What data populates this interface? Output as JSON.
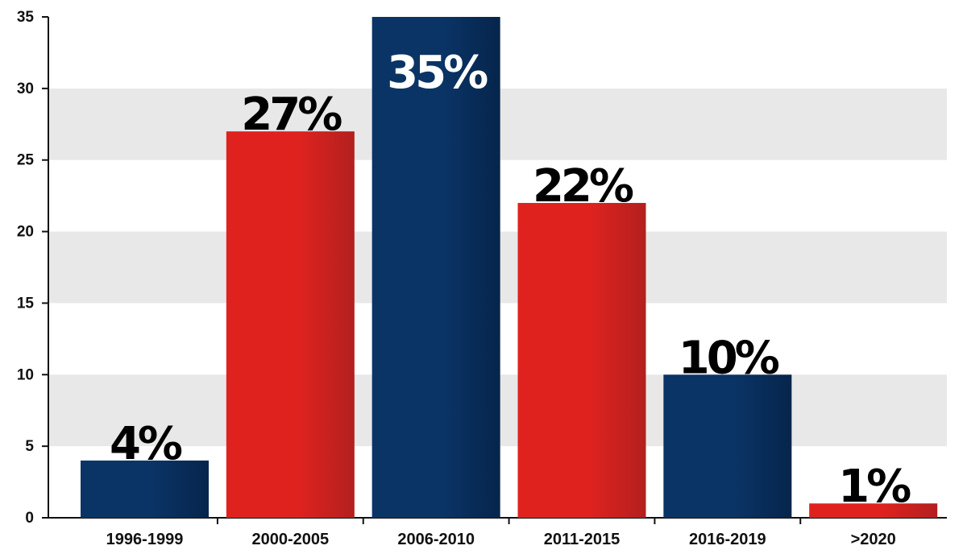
{
  "chart_data": {
    "type": "bar",
    "title": "",
    "xlabel": "",
    "ylabel": "",
    "ylim": [
      0,
      35
    ],
    "yticks": [
      "0",
      "5",
      "10",
      "15",
      "20",
      "25",
      "30",
      "35"
    ],
    "grid": "alternating horizontal bands",
    "categories": [
      "1996-1999",
      "2000-2005",
      "2006-2010",
      "2011-2015",
      "2016-2019",
      ">2020"
    ],
    "values": [
      4,
      27,
      35,
      22,
      10,
      1
    ],
    "labels": [
      "4%",
      "27%",
      "35%",
      "22%",
      "10%",
      "1%"
    ],
    "colors": [
      "#0a3466",
      "#e0221f",
      "#0a3466",
      "#e0221f",
      "#0a3466",
      "#e0221f"
    ],
    "colors_dark": [
      "#06254c",
      "#b3201f",
      "#06254c",
      "#b3201f",
      "#06254c",
      "#b3201f"
    ],
    "label_colors": [
      "#000000",
      "#000000",
      "#ffffff",
      "#000000",
      "#000000",
      "#000000"
    ],
    "band_color": "#e8e8e8",
    "axis_color": "#111111"
  }
}
